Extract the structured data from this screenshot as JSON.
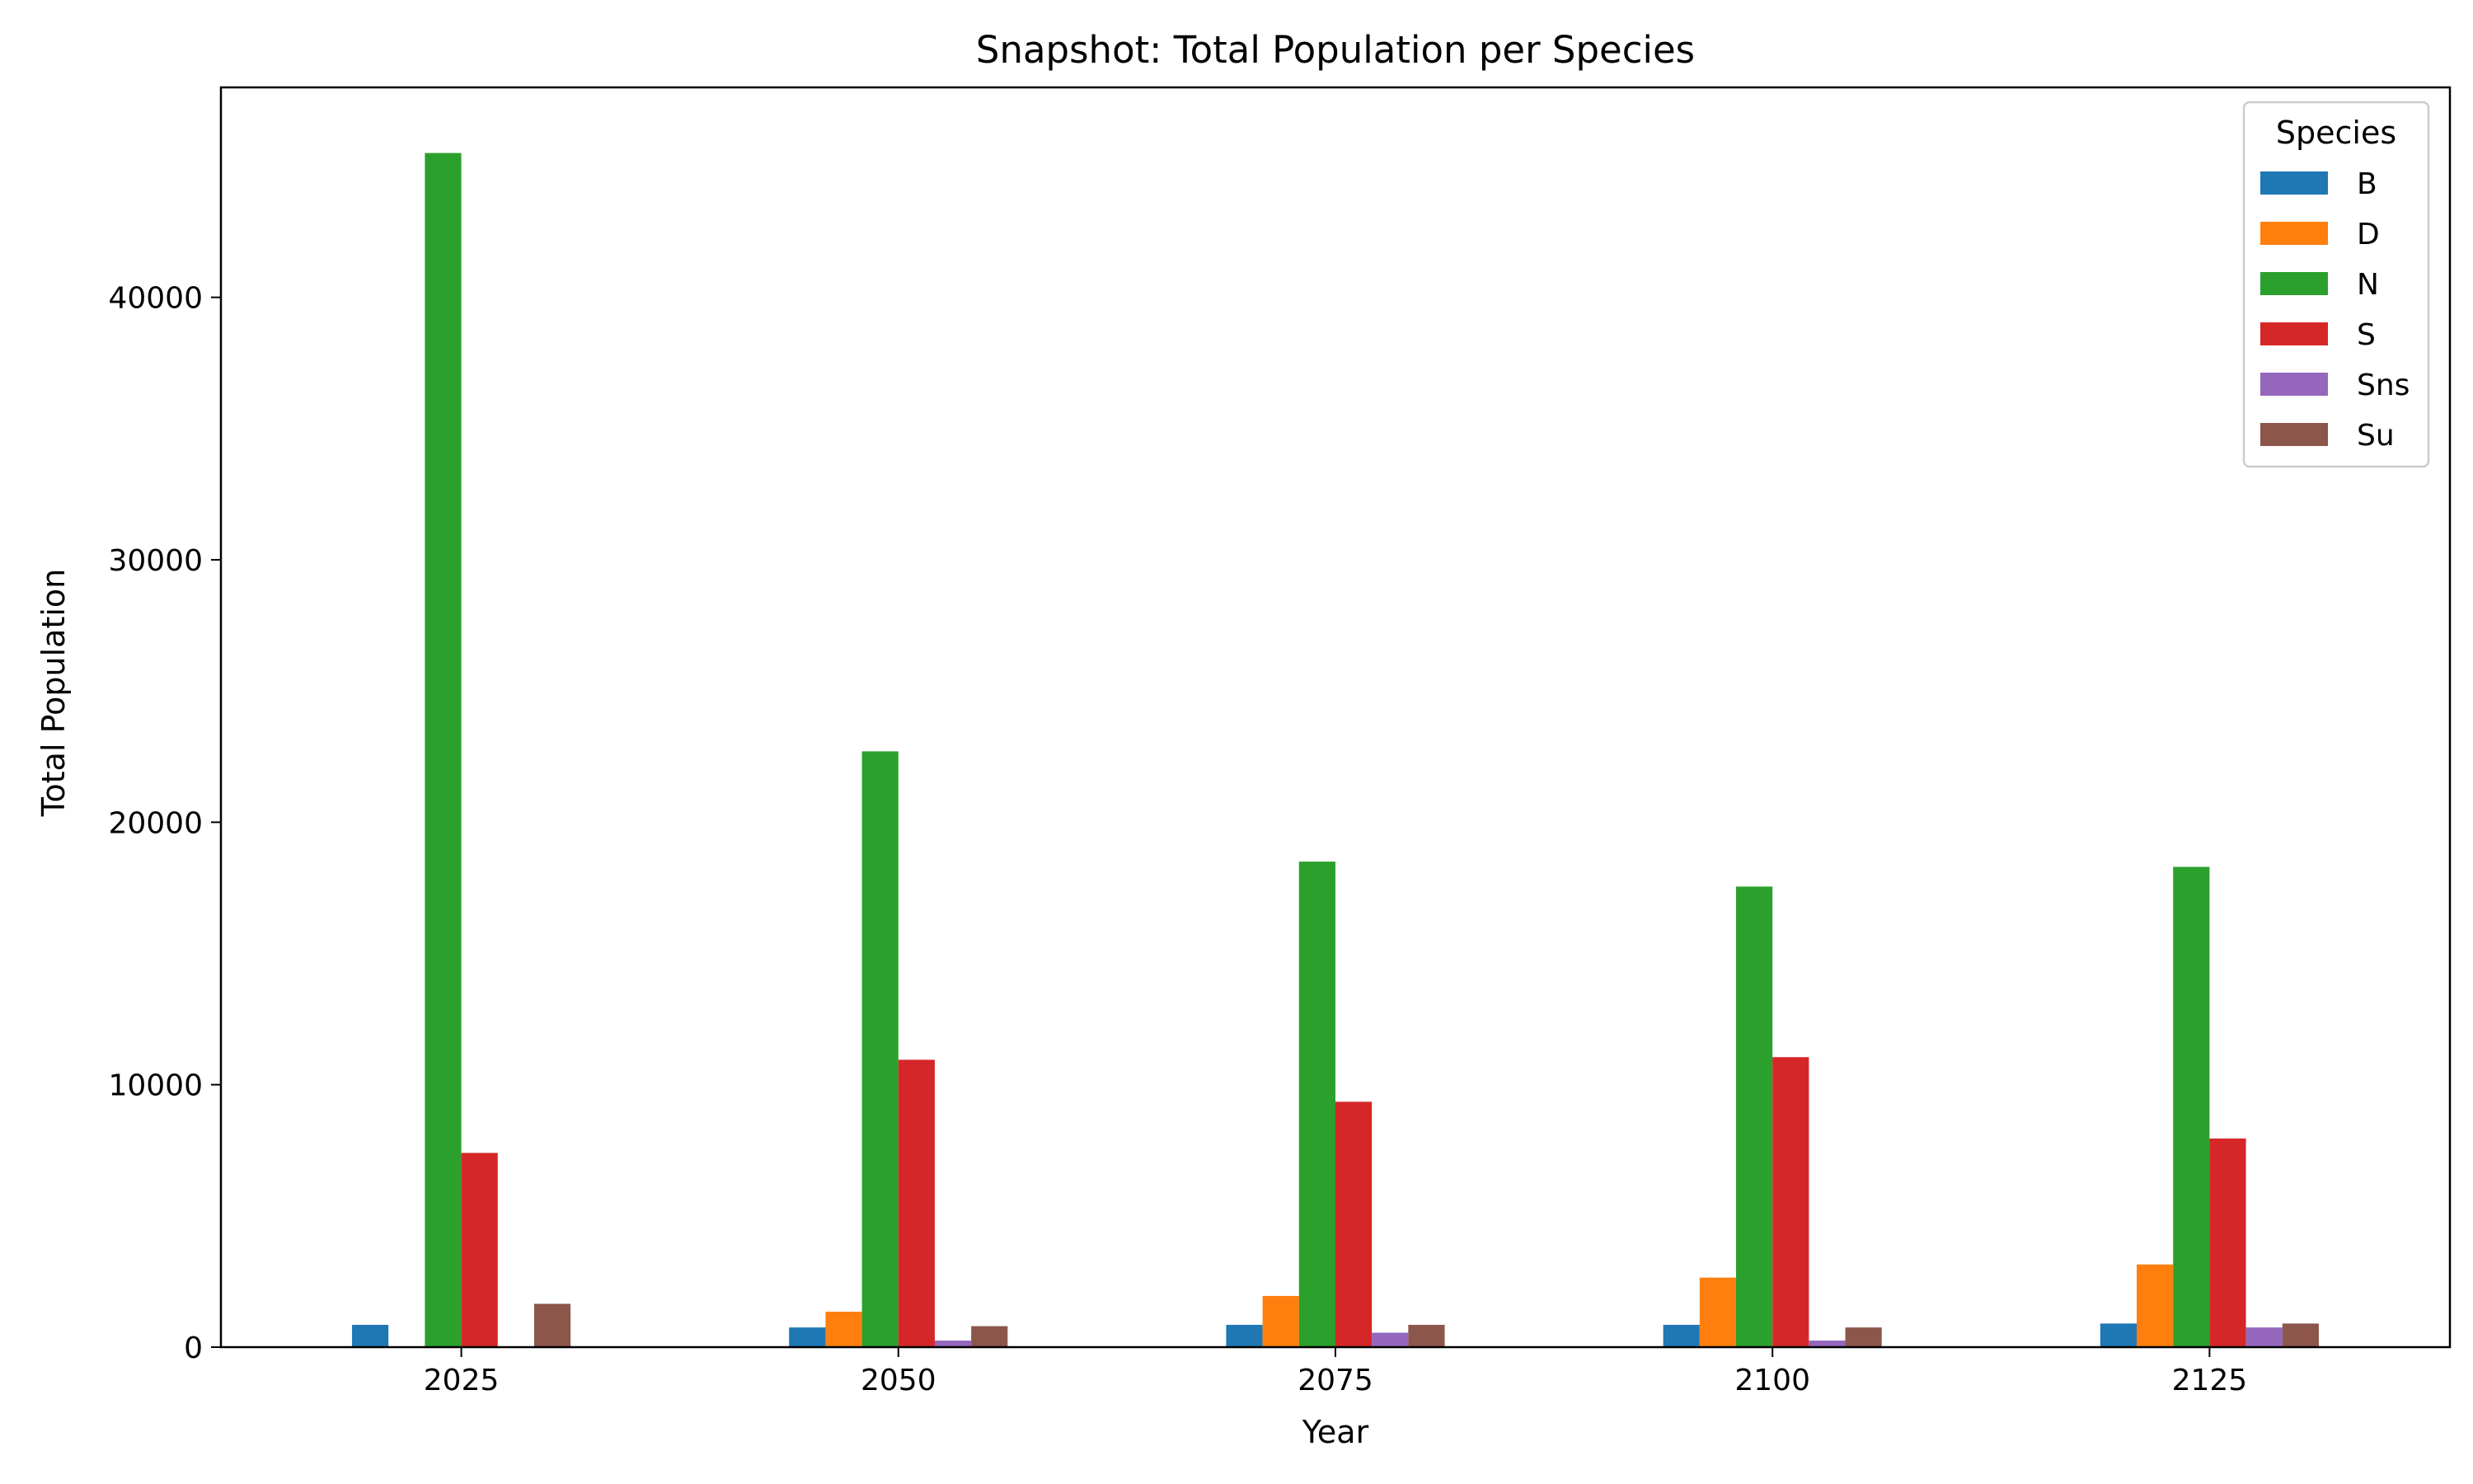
{
  "chart_data": {
    "type": "bar",
    "title": "Snapshot: Total Population per Species",
    "xlabel": "Year",
    "ylabel": "Total Population",
    "categories": [
      "2025",
      "2050",
      "2075",
      "2100",
      "2125"
    ],
    "ylim": [
      0,
      48000
    ],
    "yticks": [
      0,
      10000,
      20000,
      30000,
      40000
    ],
    "grid": false,
    "legend": {
      "title": "Species",
      "placement": "top-right"
    },
    "series": [
      {
        "name": "B",
        "color": "#1f77b4",
        "values": [
          850,
          750,
          850,
          850,
          900
        ]
      },
      {
        "name": "D",
        "color": "#ff7f0e",
        "values": [
          0,
          1350,
          1950,
          2650,
          3150
        ]
      },
      {
        "name": "N",
        "color": "#2ca02c",
        "values": [
          45500,
          22700,
          18500,
          17550,
          18300
        ]
      },
      {
        "name": "S",
        "color": "#d62728",
        "values": [
          7400,
          10950,
          9350,
          11050,
          7950
        ]
      },
      {
        "name": "Sns",
        "color": "#9467bd",
        "values": [
          0,
          250,
          550,
          250,
          750
        ]
      },
      {
        "name": "Su",
        "color": "#8c564b",
        "values": [
          1650,
          800,
          850,
          750,
          900
        ]
      }
    ]
  }
}
